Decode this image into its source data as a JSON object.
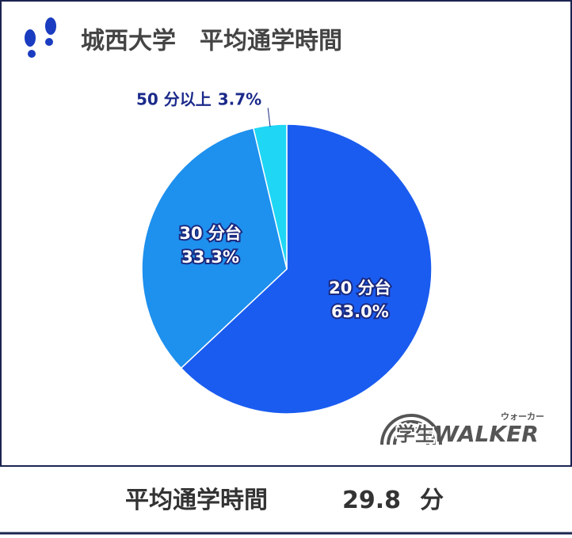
{
  "chart_data": {
    "type": "pie",
    "title": "城西大学　平均通学時間",
    "categories": [
      "20 分台",
      "30 分台",
      "50 分以上"
    ],
    "values": [
      63.0,
      33.3,
      3.7
    ],
    "value_labels": [
      "63.0%",
      "33.3%",
      "3.7%"
    ],
    "colors": [
      "#1a5cf0",
      "#1e90ee",
      "#1fd6f5"
    ]
  },
  "logo": {
    "text": "学生",
    "brand": "WALKER",
    "reading": "ウォーカー"
  },
  "footer": {
    "label": "平均通学時間",
    "value": 29.8,
    "unit": "分"
  }
}
